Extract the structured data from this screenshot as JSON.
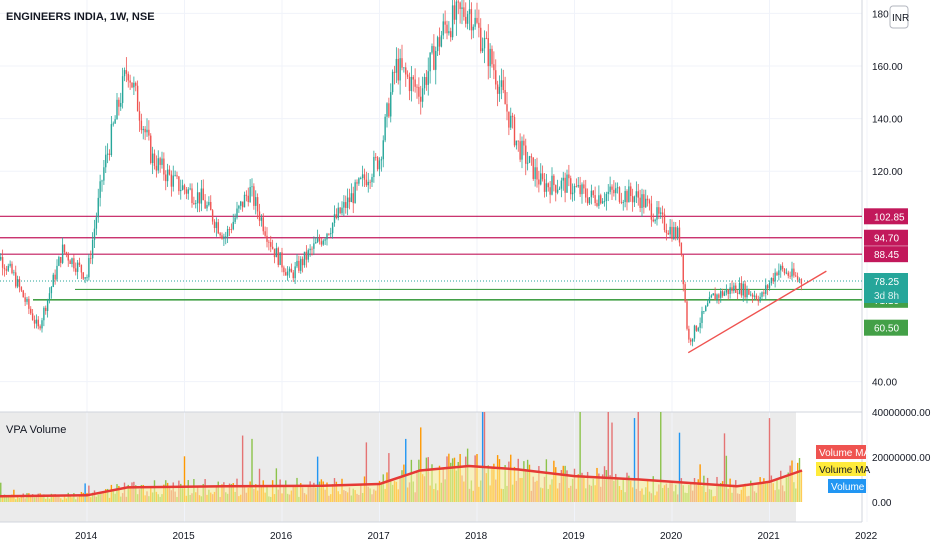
{
  "symbol_title": "ENGINEERS INDIA, 1W, NSE",
  "currency_badge": "INR",
  "volume_pane_title": "VPA Volume",
  "colors": {
    "up": "#26a69a",
    "down": "#ef5350",
    "resistance": "#c2185b",
    "support": "#43a047",
    "trendline": "#ef5350",
    "last_price_tag": "#26a69a",
    "vol_ma_line": "#e53935",
    "vol_ma_fill": "#fff59d",
    "volume_blue": "#2196f3",
    "volume_green": "#8bc34a",
    "volume_orange": "#ff9800",
    "volume_red": "#e57373"
  },
  "price_axis": {
    "ticks": [
      "180.00",
      "160.00",
      "140.00",
      "120.00",
      "40.00"
    ],
    "scale_ticks": [
      180,
      160,
      140,
      120,
      40
    ]
  },
  "volume_axis": {
    "ticks": [
      "40000000.00",
      "20000000.00",
      "0.00"
    ],
    "scale_ticks": [
      40000000,
      20000000,
      0
    ]
  },
  "time_axis": {
    "labels": [
      "2014",
      "2015",
      "2016",
      "2017",
      "2018",
      "2019",
      "2020",
      "2021",
      "2022"
    ]
  },
  "levels": [
    {
      "label": "102.85",
      "kind": "resistance"
    },
    {
      "label": "94.70",
      "kind": "resistance"
    },
    {
      "label": "88.45",
      "kind": "resistance"
    },
    {
      "label": "75.05",
      "kind": "support"
    },
    {
      "label": "71.10",
      "kind": "support"
    },
    {
      "label": "60.50",
      "kind": "support"
    }
  ],
  "last_price": {
    "label": "78.25",
    "countdown": "3d 8h"
  },
  "volume_legend": [
    {
      "label": "Volume MA",
      "color": "#ef5350"
    },
    {
      "label": "Volume MA",
      "color": "#ffeb3b"
    },
    {
      "label": "Volume",
      "color": "#2196f3"
    }
  ],
  "chart_data": {
    "type": "candlestick",
    "title": "ENGINEERS INDIA, 1W, NSE",
    "interval": "1W",
    "x_range": [
      "2013-01",
      "2021-05"
    ],
    "ylim": [
      35,
      185
    ],
    "price_path": [
      {
        "date": "2013-01",
        "price": 93
      },
      {
        "date": "2013-04",
        "price": 80
      },
      {
        "date": "2013-07",
        "price": 60
      },
      {
        "date": "2013-10",
        "price": 90
      },
      {
        "date": "2014-01",
        "price": 80
      },
      {
        "date": "2014-03",
        "price": 120
      },
      {
        "date": "2014-06",
        "price": 160
      },
      {
        "date": "2014-09",
        "price": 125
      },
      {
        "date": "2014-12",
        "price": 115
      },
      {
        "date": "2015-03",
        "price": 110
      },
      {
        "date": "2015-06",
        "price": 95
      },
      {
        "date": "2015-09",
        "price": 113
      },
      {
        "date": "2015-12",
        "price": 90
      },
      {
        "date": "2016-02",
        "price": 80
      },
      {
        "date": "2016-06",
        "price": 95
      },
      {
        "date": "2016-10",
        "price": 112
      },
      {
        "date": "2017-01",
        "price": 125
      },
      {
        "date": "2017-03",
        "price": 160
      },
      {
        "date": "2017-06",
        "price": 150
      },
      {
        "date": "2017-09",
        "price": 175
      },
      {
        "date": "2017-12",
        "price": 182
      },
      {
        "date": "2018-03",
        "price": 160
      },
      {
        "date": "2018-06",
        "price": 130
      },
      {
        "date": "2018-09",
        "price": 115
      },
      {
        "date": "2018-12",
        "price": 115
      },
      {
        "date": "2019-03",
        "price": 110
      },
      {
        "date": "2019-06",
        "price": 112
      },
      {
        "date": "2019-09",
        "price": 110
      },
      {
        "date": "2019-12",
        "price": 100
      },
      {
        "date": "2020-02",
        "price": 95
      },
      {
        "date": "2020-03",
        "price": 55
      },
      {
        "date": "2020-06",
        "price": 72
      },
      {
        "date": "2020-09",
        "price": 76
      },
      {
        "date": "2020-12",
        "price": 72
      },
      {
        "date": "2021-02",
        "price": 83
      },
      {
        "date": "2021-05",
        "price": 78.25
      }
    ],
    "horizontal_levels": [
      102.85,
      94.7,
      88.45,
      75.05,
      71.1,
      60.5
    ],
    "trendline": {
      "from": {
        "date": "2020-03",
        "price": 51
      },
      "to": {
        "date": "2021-08",
        "price": 82
      }
    },
    "volume": {
      "ylim": [
        0,
        40000000
      ],
      "ma_path": [
        {
          "date": "2013-01",
          "value": 2500000
        },
        {
          "date": "2014-01",
          "value": 3000000
        },
        {
          "date": "2014-06",
          "value": 6500000
        },
        {
          "date": "2015-06",
          "value": 7000000
        },
        {
          "date": "2016-06",
          "value": 7200000
        },
        {
          "date": "2017-01",
          "value": 8000000
        },
        {
          "date": "2017-06",
          "value": 14000000
        },
        {
          "date": "2017-12",
          "value": 16000000
        },
        {
          "date": "2018-06",
          "value": 14500000
        },
        {
          "date": "2019-01",
          "value": 11500000
        },
        {
          "date": "2019-09",
          "value": 10000000
        },
        {
          "date": "2020-03",
          "value": 8500000
        },
        {
          "date": "2020-09",
          "value": 7000000
        },
        {
          "date": "2021-01",
          "value": 9000000
        },
        {
          "date": "2021-05",
          "value": 14000000
        }
      ]
    }
  }
}
